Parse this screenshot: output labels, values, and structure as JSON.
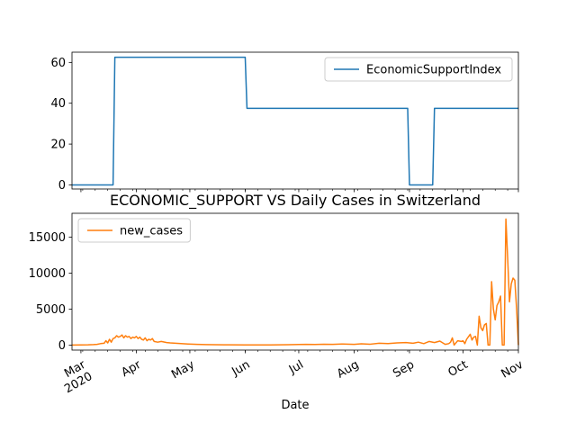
{
  "chart_data": [
    {
      "type": "line",
      "title": "",
      "ylabel": "",
      "xlabel": "",
      "ylim": [
        -2,
        65
      ],
      "xlim": [
        "2020-02-25",
        "2020-11-01"
      ],
      "y_ticks": [
        "0",
        "20",
        "40",
        "60"
      ],
      "y_tick_values": [
        0,
        20,
        40,
        60
      ],
      "legend": {
        "position": "upper right"
      },
      "series": [
        {
          "name": "EconomicSupportIndex",
          "color": "#1f77b4",
          "points": [
            [
              "2020-02-25",
              0
            ],
            [
              "2020-03-19",
              0
            ],
            [
              "2020-03-20",
              62.5
            ],
            [
              "2020-06-01",
              62.5
            ],
            [
              "2020-06-02",
              37.5
            ],
            [
              "2020-08-31",
              37.5
            ],
            [
              "2020-09-01",
              0
            ],
            [
              "2020-09-14",
              0
            ],
            [
              "2020-09-15",
              37.5
            ],
            [
              "2020-11-01",
              37.5
            ]
          ]
        }
      ]
    },
    {
      "type": "line",
      "title": "ECONOMIC_SUPPORT VS Daily Cases in Switzerland",
      "xlabel": "Date",
      "ylabel": "",
      "ylim": [
        -700,
        18300
      ],
      "xlim": [
        "2020-02-25",
        "2020-11-01"
      ],
      "y_ticks": [
        "0",
        "5000",
        "10000",
        "15000"
      ],
      "y_tick_values": [
        0,
        5000,
        10000,
        15000
      ],
      "x_ticks": [
        {
          "date": "2020-03-01",
          "label": "Mar",
          "sub": "2020"
        },
        {
          "date": "2020-04-01",
          "label": "Apr",
          "sub": ""
        },
        {
          "date": "2020-05-01",
          "label": "May",
          "sub": ""
        },
        {
          "date": "2020-06-01",
          "label": "Jun",
          "sub": ""
        },
        {
          "date": "2020-07-01",
          "label": "Jul",
          "sub": ""
        },
        {
          "date": "2020-08-01",
          "label": "Aug",
          "sub": ""
        },
        {
          "date": "2020-09-01",
          "label": "Sep",
          "sub": ""
        },
        {
          "date": "2020-10-01",
          "label": "Oct",
          "sub": ""
        },
        {
          "date": "2020-11-01",
          "label": "Nov",
          "sub": ""
        }
      ],
      "legend": {
        "position": "upper left"
      },
      "series": [
        {
          "name": "new_cases",
          "color": "#ff7f0e",
          "points": [
            [
              "2020-02-25",
              0
            ],
            [
              "2020-03-01",
              20
            ],
            [
              "2020-03-05",
              30
            ],
            [
              "2020-03-08",
              60
            ],
            [
              "2020-03-10",
              100
            ],
            [
              "2020-03-12",
              200
            ],
            [
              "2020-03-14",
              250
            ],
            [
              "2020-03-15",
              600
            ],
            [
              "2020-03-16",
              300
            ],
            [
              "2020-03-17",
              800
            ],
            [
              "2020-03-18",
              400
            ],
            [
              "2020-03-19",
              900
            ],
            [
              "2020-03-20",
              1000
            ],
            [
              "2020-03-21",
              1300
            ],
            [
              "2020-03-22",
              1100
            ],
            [
              "2020-03-23",
              1200
            ],
            [
              "2020-03-24",
              1400
            ],
            [
              "2020-03-25",
              1000
            ],
            [
              "2020-03-26",
              1300
            ],
            [
              "2020-03-27",
              1100
            ],
            [
              "2020-03-28",
              1200
            ],
            [
              "2020-03-29",
              900
            ],
            [
              "2020-03-30",
              1100
            ],
            [
              "2020-03-31",
              1000
            ],
            [
              "2020-04-01",
              1200
            ],
            [
              "2020-04-02",
              900
            ],
            [
              "2020-04-03",
              1100
            ],
            [
              "2020-04-04",
              800
            ],
            [
              "2020-04-05",
              700
            ],
            [
              "2020-04-06",
              1000
            ],
            [
              "2020-04-07",
              600
            ],
            [
              "2020-04-08",
              800
            ],
            [
              "2020-04-09",
              700
            ],
            [
              "2020-04-10",
              900
            ],
            [
              "2020-04-11",
              500
            ],
            [
              "2020-04-13",
              400
            ],
            [
              "2020-04-15",
              500
            ],
            [
              "2020-04-18",
              350
            ],
            [
              "2020-04-20",
              300
            ],
            [
              "2020-04-23",
              250
            ],
            [
              "2020-04-26",
              200
            ],
            [
              "2020-04-30",
              150
            ],
            [
              "2020-05-05",
              100
            ],
            [
              "2020-05-10",
              60
            ],
            [
              "2020-05-20",
              30
            ],
            [
              "2020-06-01",
              20
            ],
            [
              "2020-06-15",
              25
            ],
            [
              "2020-06-25",
              50
            ],
            [
              "2020-07-01",
              80
            ],
            [
              "2020-07-05",
              100
            ],
            [
              "2020-07-10",
              80
            ],
            [
              "2020-07-15",
              120
            ],
            [
              "2020-07-20",
              100
            ],
            [
              "2020-07-25",
              150
            ],
            [
              "2020-08-01",
              100
            ],
            [
              "2020-08-05",
              180
            ],
            [
              "2020-08-10",
              120
            ],
            [
              "2020-08-15",
              250
            ],
            [
              "2020-08-20",
              200
            ],
            [
              "2020-08-25",
              300
            ],
            [
              "2020-08-30",
              350
            ],
            [
              "2020-09-03",
              250
            ],
            [
              "2020-09-06",
              400
            ],
            [
              "2020-09-09",
              200
            ],
            [
              "2020-09-12",
              500
            ],
            [
              "2020-09-15",
              350
            ],
            [
              "2020-09-18",
              550
            ],
            [
              "2020-09-21",
              100
            ],
            [
              "2020-09-23",
              200
            ],
            [
              "2020-09-24",
              400
            ],
            [
              "2020-09-25",
              1000
            ],
            [
              "2020-09-26",
              0
            ],
            [
              "2020-09-28",
              600
            ],
            [
              "2020-09-30",
              500
            ],
            [
              "2020-10-01",
              600
            ],
            [
              "2020-10-02",
              200
            ],
            [
              "2020-10-03",
              800
            ],
            [
              "2020-10-05",
              1500
            ],
            [
              "2020-10-06",
              700
            ],
            [
              "2020-10-07",
              1100
            ],
            [
              "2020-10-08",
              1200
            ],
            [
              "2020-10-09",
              0
            ],
            [
              "2020-10-10",
              4000
            ],
            [
              "2020-10-11",
              2400
            ],
            [
              "2020-10-12",
              2000
            ],
            [
              "2020-10-13",
              2800
            ],
            [
              "2020-10-14",
              3000
            ],
            [
              "2020-10-15",
              0
            ],
            [
              "2020-10-16",
              0
            ],
            [
              "2020-10-17",
              8800
            ],
            [
              "2020-10-18",
              5000
            ],
            [
              "2020-10-19",
              3500
            ],
            [
              "2020-10-20",
              5500
            ],
            [
              "2020-10-21",
              6000
            ],
            [
              "2020-10-22",
              6800
            ],
            [
              "2020-10-23",
              0
            ],
            [
              "2020-10-24",
              0
            ],
            [
              "2020-10-25",
              17500
            ],
            [
              "2020-10-26",
              12000
            ],
            [
              "2020-10-27",
              6000
            ],
            [
              "2020-10-28",
              8500
            ],
            [
              "2020-10-29",
              9300
            ],
            [
              "2020-10-30",
              9000
            ],
            [
              "2020-10-31",
              5000
            ],
            [
              "2020-11-01",
              0
            ]
          ]
        }
      ]
    }
  ]
}
